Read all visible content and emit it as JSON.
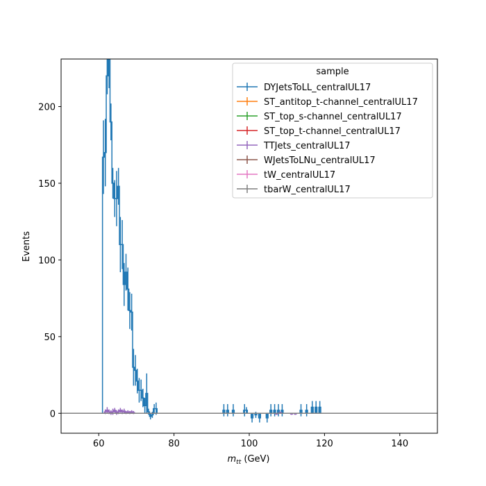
{
  "chart_data": {
    "type": "histogram",
    "xlabel_main": "m",
    "xlabel_sub": "tt",
    "xlabel_unit": " (GeV)",
    "ylabel": "Events",
    "xlim": [
      50,
      150
    ],
    "ylim": [
      -13,
      231
    ],
    "grid": false,
    "x_ticks": [
      60,
      80,
      100,
      120,
      140
    ],
    "y_ticks": [
      0,
      50,
      100,
      150,
      200
    ],
    "legend": {
      "title": "sample",
      "placement": "top-right"
    },
    "bin_width": 0.5,
    "series": [
      {
        "name": "DYJetsToLL_centralUL17",
        "color": "#1f77b4",
        "bins": [
          [
            61.0,
            167,
            24
          ],
          [
            61.5,
            170,
            22
          ],
          [
            62.0,
            220,
            12
          ],
          [
            62.5,
            232,
            20
          ],
          [
            63.0,
            190,
            12
          ],
          [
            63.5,
            150,
            10
          ],
          [
            64.0,
            140,
            12
          ],
          [
            64.5,
            140,
            18
          ],
          [
            65.0,
            148,
            12
          ],
          [
            65.5,
            110,
            18
          ],
          [
            66.0,
            110,
            16
          ],
          [
            66.5,
            84,
            14
          ],
          [
            67.0,
            92,
            12
          ],
          [
            67.5,
            81,
            14
          ],
          [
            68.0,
            67,
            12
          ],
          [
            68.5,
            66,
            12
          ],
          [
            69.0,
            30,
            12
          ],
          [
            69.5,
            28,
            10
          ],
          [
            70.0,
            21,
            8
          ],
          [
            70.5,
            15,
            8
          ],
          [
            71.0,
            15,
            7
          ],
          [
            71.5,
            10,
            6
          ],
          [
            72.0,
            5,
            5
          ],
          [
            72.5,
            13,
            13
          ],
          [
            73.0,
            1,
            2
          ],
          [
            73.5,
            -2,
            2
          ],
          [
            74.0,
            -1,
            2
          ],
          [
            74.5,
            3,
            3
          ],
          [
            75.0,
            3,
            4
          ],
          [
            93.0,
            2,
            4
          ],
          [
            94.0,
            2,
            4
          ],
          [
            95.0,
            0,
            0
          ],
          [
            95.5,
            2,
            4
          ],
          [
            98.5,
            2,
            4
          ],
          [
            99.0,
            2,
            2
          ],
          [
            100.5,
            -3,
            3
          ],
          [
            101.5,
            -1,
            2
          ],
          [
            102.5,
            -3,
            3
          ],
          [
            103.5,
            0,
            0
          ],
          [
            104.5,
            -3,
            3
          ],
          [
            105.5,
            2,
            4
          ],
          [
            106.5,
            2,
            4
          ],
          [
            107.5,
            2,
            4
          ],
          [
            108.5,
            2,
            4
          ],
          [
            113.5,
            2,
            4
          ],
          [
            114.5,
            0,
            0
          ],
          [
            115.0,
            2,
            4
          ],
          [
            116.5,
            4,
            4
          ],
          [
            117.5,
            4,
            4
          ],
          [
            118.5,
            4,
            4
          ],
          [
            119.5,
            0,
            0
          ]
        ]
      },
      {
        "name": "ST_antitop_t-channel_centralUL17",
        "color": "#ff7f0e",
        "bins": []
      },
      {
        "name": "ST_top_s-channel_centralUL17",
        "color": "#2ca02c",
        "bins": []
      },
      {
        "name": "ST_top_t-channel_centralUL17",
        "color": "#d62728",
        "bins": []
      },
      {
        "name": "TTJets_centralUL17",
        "color": "#9467bd",
        "bins": [
          [
            61.5,
            1,
            1.5
          ],
          [
            62.0,
            2,
            2
          ],
          [
            62.5,
            1,
            1.5
          ],
          [
            63.0,
            0.5,
            1.5
          ],
          [
            63.5,
            1,
            2
          ],
          [
            64.0,
            2,
            1.5
          ],
          [
            64.5,
            0.5,
            1.5
          ],
          [
            65.0,
            1,
            1.5
          ],
          [
            65.5,
            2,
            1.5
          ],
          [
            66.0,
            1,
            1.5
          ],
          [
            66.5,
            1.5,
            1.5
          ],
          [
            67.0,
            0.5,
            1
          ],
          [
            67.5,
            1,
            1
          ],
          [
            68.0,
            0.5,
            1
          ],
          [
            68.5,
            1,
            1
          ],
          [
            69.0,
            0.5,
            1
          ],
          [
            107.0,
            -0.5,
            0.5
          ],
          [
            108.0,
            0.5,
            0.5
          ],
          [
            111.0,
            -0.5,
            0.5
          ],
          [
            112.0,
            -0.5,
            0.5
          ]
        ]
      },
      {
        "name": "WJetsToLNu_centralUL17",
        "color": "#8c564b",
        "bins": []
      },
      {
        "name": "tW_centralUL17",
        "color": "#e377c2",
        "bins": []
      },
      {
        "name": "tbarW_centralUL17",
        "color": "#7f7f7f",
        "bins": [
          [
            50,
            0,
            0
          ],
          [
            149.5,
            0,
            0
          ]
        ],
        "flat_line": true
      }
    ]
  }
}
